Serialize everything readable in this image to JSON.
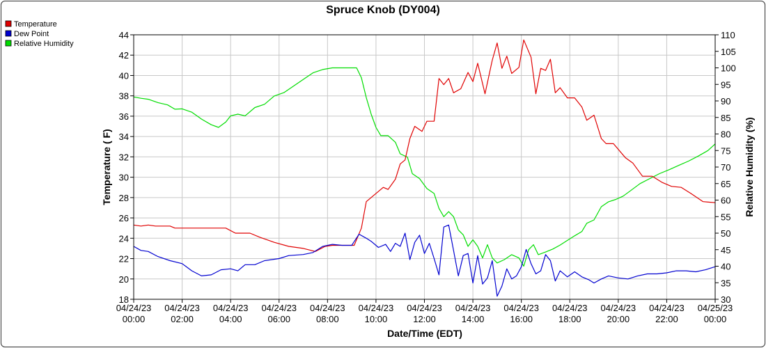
{
  "chart_data": {
    "type": "line",
    "title": "Spruce Knob (DY004)",
    "xlabel": "Date/Time (EDT)",
    "ylabel_left": "Temperature ( F)",
    "ylabel_right": "Relative Humidity (%)",
    "ylim_left": [
      18,
      44
    ],
    "ylim_right": [
      30,
      110
    ],
    "yticks_left": [
      18,
      20,
      22,
      24,
      26,
      28,
      30,
      32,
      34,
      36,
      38,
      40,
      42,
      44
    ],
    "yticks_right": [
      30,
      35,
      40,
      45,
      50,
      55,
      60,
      65,
      70,
      75,
      80,
      85,
      90,
      95,
      100,
      105,
      110
    ],
    "x_range_hours": [
      0,
      24
    ],
    "x_ticks": [
      {
        "date": "04/24/23",
        "time": "00:00"
      },
      {
        "date": "04/24/23",
        "time": "02:00"
      },
      {
        "date": "04/24/23",
        "time": "04:00"
      },
      {
        "date": "04/24/23",
        "time": "06:00"
      },
      {
        "date": "04/24/23",
        "time": "08:00"
      },
      {
        "date": "04/24/23",
        "time": "10:00"
      },
      {
        "date": "04/24/23",
        "time": "12:00"
      },
      {
        "date": "04/24/23",
        "time": "14:00"
      },
      {
        "date": "04/24/23",
        "time": "16:00"
      },
      {
        "date": "04/24/23",
        "time": "18:00"
      },
      {
        "date": "04/24/23",
        "time": "20:00"
      },
      {
        "date": "04/24/23",
        "time": "22:00"
      },
      {
        "date": "04/25/23",
        "time": "00:00"
      }
    ],
    "grid": true,
    "legend_position": "top-left",
    "series": [
      {
        "name": "Temperature",
        "axis": "left",
        "color": "#e00000",
        "points": [
          [
            0,
            25.3
          ],
          [
            0.3,
            25.2
          ],
          [
            0.6,
            25.3
          ],
          [
            0.9,
            25.2
          ],
          [
            1.5,
            25.2
          ],
          [
            1.7,
            25
          ],
          [
            2.5,
            25
          ],
          [
            3.8,
            25
          ],
          [
            4.2,
            24.5
          ],
          [
            4.8,
            24.5
          ],
          [
            5.2,
            24.1
          ],
          [
            5.8,
            23.6
          ],
          [
            6.4,
            23.2
          ],
          [
            7,
            23
          ],
          [
            7.5,
            22.7
          ],
          [
            7.9,
            23.2
          ],
          [
            8.2,
            23.3
          ],
          [
            8.6,
            23.3
          ],
          [
            9.1,
            23.3
          ],
          [
            9.4,
            25
          ],
          [
            9.6,
            27.6
          ],
          [
            9.9,
            28.2
          ],
          [
            10.3,
            29
          ],
          [
            10.5,
            28.8
          ],
          [
            10.8,
            29.8
          ],
          [
            11,
            31.3
          ],
          [
            11.2,
            31.7
          ],
          [
            11.4,
            33.8
          ],
          [
            11.6,
            35
          ],
          [
            11.9,
            34.5
          ],
          [
            12.1,
            35.5
          ],
          [
            12.4,
            35.5
          ],
          [
            12.6,
            39.7
          ],
          [
            12.8,
            39.1
          ],
          [
            13,
            39.7
          ],
          [
            13.2,
            38.3
          ],
          [
            13.5,
            38.7
          ],
          [
            13.8,
            40.3
          ],
          [
            14,
            39.4
          ],
          [
            14.2,
            41.2
          ],
          [
            14.5,
            38.2
          ],
          [
            14.8,
            41.5
          ],
          [
            15.0,
            43.2
          ],
          [
            15.2,
            40.7
          ],
          [
            15.4,
            41.9
          ],
          [
            15.6,
            40.2
          ],
          [
            15.9,
            40.8
          ],
          [
            16.1,
            43.5
          ],
          [
            16.4,
            41.8
          ],
          [
            16.6,
            38.2
          ],
          [
            16.8,
            40.7
          ],
          [
            17,
            40.5
          ],
          [
            17.2,
            41.6
          ],
          [
            17.4,
            38.3
          ],
          [
            17.6,
            38.8
          ],
          [
            17.9,
            37.8
          ],
          [
            18.2,
            37.8
          ],
          [
            18.5,
            36.9
          ],
          [
            18.7,
            35.6
          ],
          [
            19.0,
            36.1
          ],
          [
            19.3,
            33.8
          ],
          [
            19.5,
            33.3
          ],
          [
            19.8,
            33.3
          ],
          [
            20.3,
            31.9
          ],
          [
            20.6,
            31.4
          ],
          [
            21,
            30.1
          ],
          [
            21.4,
            30.1
          ],
          [
            21.8,
            29.5
          ],
          [
            22.2,
            29.1
          ],
          [
            22.6,
            29.0
          ],
          [
            23,
            28.4
          ],
          [
            23.5,
            27.6
          ],
          [
            24,
            27.5
          ]
        ]
      },
      {
        "name": "Dew Point",
        "axis": "left",
        "color": "#0000d0",
        "points": [
          [
            0,
            23.2
          ],
          [
            0.3,
            22.8
          ],
          [
            0.6,
            22.7
          ],
          [
            1,
            22.2
          ],
          [
            1.5,
            21.8
          ],
          [
            2,
            21.5
          ],
          [
            2.4,
            20.8
          ],
          [
            2.8,
            20.3
          ],
          [
            3.2,
            20.4
          ],
          [
            3.6,
            20.9
          ],
          [
            4,
            21.0
          ],
          [
            4.3,
            20.8
          ],
          [
            4.6,
            21.4
          ],
          [
            5,
            21.4
          ],
          [
            5.4,
            21.8
          ],
          [
            6,
            22
          ],
          [
            6.4,
            22.3
          ],
          [
            7,
            22.4
          ],
          [
            7.4,
            22.6
          ],
          [
            7.8,
            23.2
          ],
          [
            8.2,
            23.4
          ],
          [
            8.6,
            23.3
          ],
          [
            9,
            23.3
          ],
          [
            9.3,
            24.4
          ],
          [
            9.6,
            24
          ],
          [
            9.8,
            23.7
          ],
          [
            10.1,
            23.1
          ],
          [
            10.4,
            23.4
          ],
          [
            10.6,
            22.7
          ],
          [
            10.8,
            23.5
          ],
          [
            11,
            23.2
          ],
          [
            11.2,
            24.5
          ],
          [
            11.4,
            21.9
          ],
          [
            11.6,
            23.6
          ],
          [
            11.8,
            24.3
          ],
          [
            12,
            22.5
          ],
          [
            12.2,
            23.5
          ],
          [
            12.4,
            22
          ],
          [
            12.6,
            20.4
          ],
          [
            12.8,
            25.1
          ],
          [
            13,
            25.3
          ],
          [
            13.2,
            22.8
          ],
          [
            13.4,
            20.3
          ],
          [
            13.6,
            22.3
          ],
          [
            13.8,
            22.5
          ],
          [
            14,
            19.6
          ],
          [
            14.2,
            22.3
          ],
          [
            14.4,
            19.5
          ],
          [
            14.6,
            20.1
          ],
          [
            14.8,
            21.8
          ],
          [
            15.0,
            18.3
          ],
          [
            15.2,
            19.3
          ],
          [
            15.4,
            21
          ],
          [
            15.6,
            20
          ],
          [
            15.8,
            20.3
          ],
          [
            16,
            21.2
          ],
          [
            16.2,
            22.9
          ],
          [
            16.4,
            21.5
          ],
          [
            16.6,
            20.5
          ],
          [
            16.8,
            20.8
          ],
          [
            17,
            22.4
          ],
          [
            17.2,
            21.8
          ],
          [
            17.4,
            19.8
          ],
          [
            17.6,
            20.8
          ],
          [
            17.9,
            20.2
          ],
          [
            18.2,
            20.7
          ],
          [
            18.5,
            20.2
          ],
          [
            18.8,
            19.9
          ],
          [
            19,
            19.6
          ],
          [
            19.3,
            20
          ],
          [
            19.6,
            20.3
          ],
          [
            20,
            20.1
          ],
          [
            20.4,
            20
          ],
          [
            20.8,
            20.3
          ],
          [
            21.2,
            20.5
          ],
          [
            21.6,
            20.5
          ],
          [
            22,
            20.6
          ],
          [
            22.4,
            20.8
          ],
          [
            22.8,
            20.8
          ],
          [
            23.2,
            20.7
          ],
          [
            23.6,
            20.9
          ],
          [
            24,
            21.2
          ]
        ]
      },
      {
        "name": "Relative Humidity",
        "axis": "right",
        "color": "#00dd00",
        "points": [
          [
            0,
            91.2
          ],
          [
            0.3,
            90.8
          ],
          [
            0.6,
            90.5
          ],
          [
            1,
            89.5
          ],
          [
            1.4,
            88.8
          ],
          [
            1.7,
            87.5
          ],
          [
            2,
            87.6
          ],
          [
            2.4,
            86.6
          ],
          [
            2.8,
            84.5
          ],
          [
            3.2,
            82.8
          ],
          [
            3.5,
            82.0
          ],
          [
            3.8,
            83.6
          ],
          [
            4,
            85.5
          ],
          [
            4.3,
            86.0
          ],
          [
            4.6,
            85.5
          ],
          [
            5,
            88.0
          ],
          [
            5.4,
            89.0
          ],
          [
            5.8,
            91.5
          ],
          [
            6.2,
            92.5
          ],
          [
            6.6,
            94.5
          ],
          [
            7,
            96.5
          ],
          [
            7.4,
            98.5
          ],
          [
            7.8,
            99.5
          ],
          [
            8.2,
            100
          ],
          [
            9.2,
            100
          ],
          [
            9.4,
            97
          ],
          [
            9.6,
            91
          ],
          [
            9.8,
            86
          ],
          [
            10,
            82
          ],
          [
            10.2,
            79.5
          ],
          [
            10.5,
            79.5
          ],
          [
            10.8,
            77.5
          ],
          [
            11,
            74
          ],
          [
            11.3,
            73
          ],
          [
            11.5,
            68
          ],
          [
            11.8,
            66.5
          ],
          [
            12.1,
            63.5
          ],
          [
            12.4,
            62
          ],
          [
            12.6,
            57.5
          ],
          [
            12.8,
            55
          ],
          [
            13.0,
            56.5
          ],
          [
            13.2,
            55
          ],
          [
            13.4,
            51
          ],
          [
            13.6,
            49.5
          ],
          [
            13.8,
            46
          ],
          [
            14,
            48
          ],
          [
            14.2,
            46
          ],
          [
            14.4,
            42.5
          ],
          [
            14.6,
            46.5
          ],
          [
            14.8,
            42.5
          ],
          [
            15.0,
            41
          ],
          [
            15.3,
            42
          ],
          [
            15.6,
            43.5
          ],
          [
            15.9,
            42.5
          ],
          [
            16.1,
            40
          ],
          [
            16.3,
            45
          ],
          [
            16.5,
            46.5
          ],
          [
            16.7,
            43.5
          ],
          [
            17,
            44.3
          ],
          [
            17.3,
            45.2
          ],
          [
            17.6,
            46.4
          ],
          [
            17.9,
            47.8
          ],
          [
            18.2,
            49.2
          ],
          [
            18.5,
            50.5
          ],
          [
            18.7,
            53
          ],
          [
            19,
            54
          ],
          [
            19.3,
            58
          ],
          [
            19.6,
            59.5
          ],
          [
            19.9,
            60.2
          ],
          [
            20.2,
            61.2
          ],
          [
            20.5,
            62.8
          ],
          [
            20.9,
            65
          ],
          [
            21.3,
            66.5
          ],
          [
            21.7,
            68
          ],
          [
            22.1,
            69.2
          ],
          [
            22.5,
            70.5
          ],
          [
            22.9,
            71.8
          ],
          [
            23.3,
            73.3
          ],
          [
            23.7,
            75
          ],
          [
            24,
            77
          ]
        ]
      }
    ]
  }
}
